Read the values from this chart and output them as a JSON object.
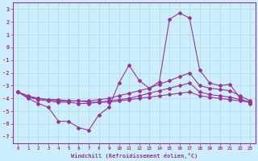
{
  "xlabel": "Windchill (Refroidissement éolien,°C)",
  "bg_color": "#cceeff",
  "grid_color": "#aadddd",
  "line_color": "#993399",
  "xlim": [
    -0.5,
    23.5
  ],
  "ylim": [
    -7.5,
    3.5
  ],
  "xticks": [
    0,
    1,
    2,
    3,
    4,
    5,
    6,
    7,
    8,
    9,
    10,
    11,
    12,
    13,
    14,
    15,
    16,
    17,
    18,
    19,
    20,
    21,
    22,
    23
  ],
  "yticks": [
    -7,
    -6,
    -5,
    -4,
    -3,
    -2,
    -1,
    0,
    1,
    2,
    3
  ],
  "curve1_x": [
    0,
    1,
    2,
    3,
    4,
    5,
    6,
    7,
    8,
    9,
    10,
    11,
    12,
    13,
    14,
    15,
    16,
    17,
    18,
    19,
    20,
    21,
    22,
    23
  ],
  "curve1_y": [
    -3.5,
    -4.0,
    -4.4,
    -4.7,
    -5.8,
    -5.8,
    -6.3,
    -6.5,
    -5.3,
    -4.7,
    -2.8,
    -1.4,
    -2.6,
    -3.2,
    -2.7,
    2.2,
    2.7,
    2.3,
    -1.8,
    -2.8,
    -3.0,
    -2.9,
    -4.0,
    -4.4
  ],
  "curve2_x": [
    0,
    1,
    2,
    3,
    4,
    5,
    6,
    7,
    8,
    9,
    10,
    11,
    12,
    13,
    14,
    15,
    16,
    17,
    18,
    19,
    20,
    21,
    22,
    23
  ],
  "curve2_y": [
    -3.5,
    -3.8,
    -4.0,
    -4.1,
    -4.2,
    -4.2,
    -4.2,
    -4.2,
    -4.1,
    -4.0,
    -3.8,
    -3.6,
    -3.4,
    -3.2,
    -2.9,
    -2.6,
    -2.3,
    -2.0,
    -3.0,
    -3.2,
    -3.3,
    -3.4,
    -3.8,
    -4.2
  ],
  "curve3_x": [
    0,
    1,
    2,
    3,
    4,
    5,
    6,
    7,
    8,
    9,
    10,
    11,
    12,
    13,
    14,
    15,
    16,
    17,
    18,
    19,
    20,
    21,
    22,
    23
  ],
  "curve3_y": [
    -3.5,
    -3.9,
    -4.1,
    -4.2,
    -4.3,
    -4.3,
    -4.4,
    -4.4,
    -4.3,
    -4.2,
    -4.1,
    -4.0,
    -3.8,
    -3.6,
    -3.4,
    -3.2,
    -3.0,
    -2.8,
    -3.5,
    -3.7,
    -3.8,
    -3.9,
    -4.1,
    -4.3
  ],
  "curve4_x": [
    0,
    1,
    2,
    3,
    4,
    5,
    6,
    7,
    8,
    9,
    10,
    11,
    12,
    13,
    14,
    15,
    16,
    17,
    18,
    19,
    20,
    21,
    22,
    23
  ],
  "curve4_y": [
    -3.5,
    -3.9,
    -4.0,
    -4.1,
    -4.1,
    -4.2,
    -4.2,
    -4.3,
    -4.3,
    -4.3,
    -4.2,
    -4.1,
    -4.0,
    -3.9,
    -3.8,
    -3.7,
    -3.6,
    -3.5,
    -3.8,
    -3.9,
    -4.0,
    -4.1,
    -4.2,
    -4.3
  ]
}
